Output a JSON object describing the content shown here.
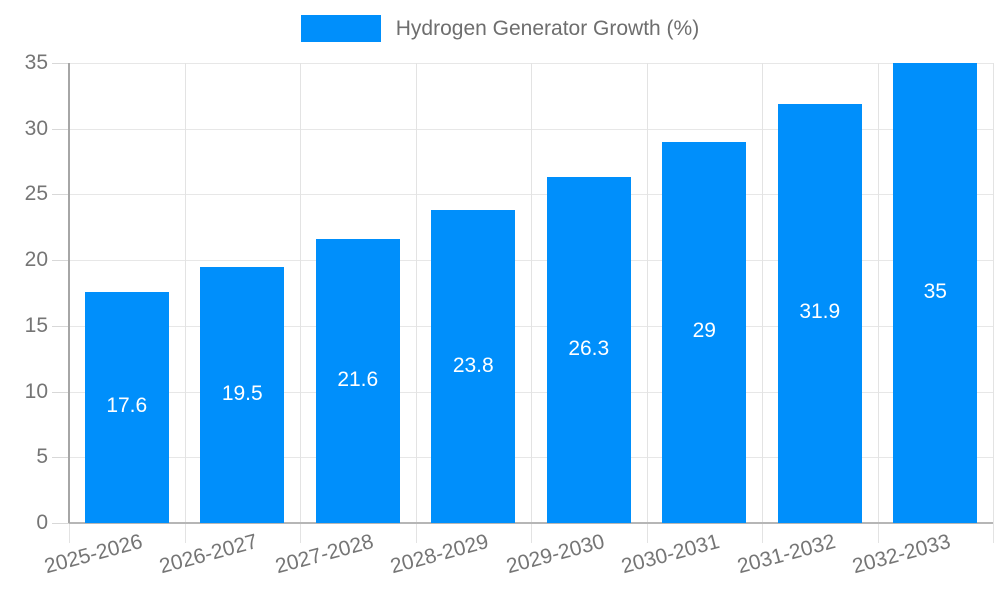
{
  "legend": {
    "label": "Hydrogen Generator Growth (%)",
    "swatch_color": "#008FFB"
  },
  "chart_data": {
    "type": "bar",
    "title": "Hydrogen Generator Growth (%)",
    "categories": [
      "2025-2026",
      "2026-2027",
      "2027-2028",
      "2028-2029",
      "2029-2030",
      "2030-2031",
      "2031-2032",
      "2032-2033"
    ],
    "values": [
      17.6,
      19.5,
      21.6,
      23.8,
      26.3,
      29,
      31.9,
      35
    ],
    "value_labels": [
      "17.6",
      "19.5",
      "21.6",
      "23.8",
      "26.3",
      "29",
      "31.9",
      "35"
    ],
    "xlabel": "",
    "ylabel": "",
    "ylim": [
      0,
      35
    ],
    "yticks": [
      0,
      5,
      10,
      15,
      20,
      25,
      30,
      35
    ],
    "grid": true,
    "legend_position": "top",
    "bar_color": "#008FFB",
    "value_label_color": "#ffffff",
    "axis_text_color": "#757575"
  }
}
